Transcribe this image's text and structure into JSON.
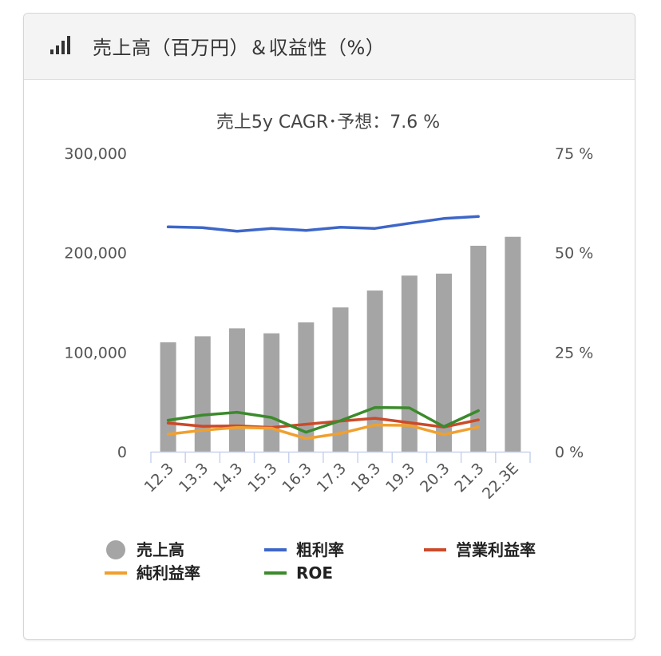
{
  "header": {
    "title": "売上高（百万円）＆収益性（%）",
    "icon": "signal-bars-icon"
  },
  "chart_data": {
    "type": "bar",
    "title": "売上5y CAGR･予想：7.6 %",
    "categories": [
      "12.3",
      "13.3",
      "14.3",
      "15.3",
      "16.3",
      "17.3",
      "18.3",
      "19.3",
      "20.3",
      "21.3",
      "22.3E"
    ],
    "y_left": {
      "ylim": [
        0,
        300000
      ],
      "ticks": [
        "0",
        "100,000",
        "200,000",
        "300,000"
      ],
      "tick_values": [
        0,
        100000,
        200000,
        300000
      ]
    },
    "y_right": {
      "ylim": [
        0,
        75
      ],
      "ticks": [
        "0 %",
        "25 %",
        "50 %",
        "75 %"
      ],
      "tick_values": [
        0,
        25,
        50,
        75
      ]
    },
    "grid": false,
    "legend_position": "bottom",
    "bar_series": {
      "name": "売上高",
      "color": "#a6a5a5",
      "axis": "left",
      "values": [
        110000,
        116000,
        124000,
        119000,
        130000,
        145000,
        162000,
        177000,
        179000,
        207000,
        216000
      ]
    },
    "line_series": [
      {
        "name": "粗利率",
        "color": "#3d66c8",
        "axis": "right",
        "values": [
          56.5,
          56.3,
          55.4,
          56.1,
          55.6,
          56.4,
          56.1,
          57.4,
          58.6,
          59.1,
          null
        ]
      },
      {
        "name": "営業利益率",
        "color": "#cb4a29",
        "axis": "right",
        "values": [
          7.2,
          6.4,
          6.5,
          6.1,
          6.9,
          7.7,
          8.4,
          7.3,
          6.2,
          8.0,
          null
        ]
      },
      {
        "name": "純利益率",
        "color": "#f0a02f",
        "axis": "right",
        "values": [
          4.4,
          5.4,
          6.1,
          5.9,
          3.3,
          4.6,
          6.7,
          6.6,
          4.3,
          6.2,
          null
        ]
      },
      {
        "name": "ROE",
        "color": "#3b8a2c",
        "axis": "right",
        "values": [
          7.9,
          9.2,
          9.9,
          8.6,
          4.9,
          7.8,
          11.1,
          11.0,
          6.3,
          10.3,
          null
        ]
      }
    ]
  }
}
